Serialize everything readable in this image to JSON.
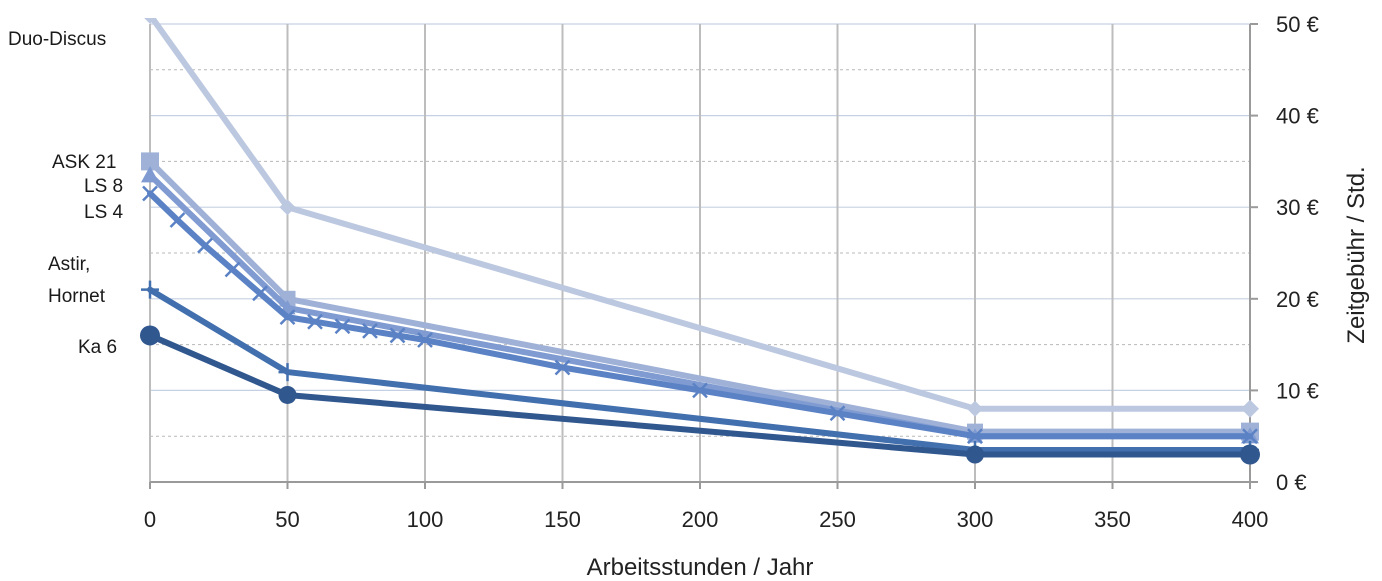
{
  "chart_data": {
    "type": "line",
    "title": "",
    "xlabel": "Arbeitsstunden / Jahr",
    "ylabel": "Zeitgebühr / Std.",
    "x_categories": [
      "0",
      "50",
      "100",
      "150",
      "200",
      "250",
      "300",
      "350",
      "400"
    ],
    "x_tick_values": [
      0,
      50,
      100,
      150,
      200,
      250,
      300,
      350,
      400
    ],
    "y_ticks": [
      "0 €",
      "10 €",
      "20 €",
      "30 €",
      "40 €",
      "50 €"
    ],
    "y_tick_values": [
      0,
      10,
      20,
      30,
      40,
      50
    ],
    "ylim": [
      0,
      50
    ],
    "grid": "vertical major gridlines, horizontal major and dashed minor gridlines",
    "y_axis_position": "right",
    "series": [
      {
        "name": "Duo-Discus",
        "label_lines": [
          "Duo-Discus"
        ],
        "color": "#bcc8e0",
        "marker": "diamond",
        "points": [
          [
            0,
            51
          ],
          [
            50,
            30
          ],
          [
            300,
            8
          ],
          [
            400,
            8
          ]
        ]
      },
      {
        "name": "ASK 21",
        "label_lines": [
          "ASK 21"
        ],
        "color": "#9fb1d6",
        "marker": "square",
        "points": [
          [
            0,
            35
          ],
          [
            50,
            20
          ],
          [
            300,
            5.5
          ],
          [
            400,
            5.5
          ]
        ]
      },
      {
        "name": "LS 8",
        "label_lines": [
          "LS 8"
        ],
        "color": "#7f9bd1",
        "marker": "triangle",
        "points": [
          [
            0,
            33.5
          ],
          [
            50,
            19
          ],
          [
            300,
            5
          ],
          [
            400,
            5
          ]
        ]
      },
      {
        "name": "LS 4",
        "label_lines": [
          "LS 4"
        ],
        "color": "#5b82c5",
        "marker": "x",
        "points": [
          [
            0,
            31.5
          ],
          [
            10,
            28.6
          ],
          [
            20,
            25.8
          ],
          [
            30,
            23.2
          ],
          [
            40,
            20.6
          ],
          [
            50,
            18
          ],
          [
            60,
            17.5
          ],
          [
            70,
            17
          ],
          [
            80,
            16.5
          ],
          [
            90,
            16
          ],
          [
            100,
            15.5
          ],
          [
            150,
            12.5
          ],
          [
            200,
            10
          ],
          [
            250,
            7.5
          ],
          [
            300,
            5
          ],
          [
            400,
            5
          ]
        ]
      },
      {
        "name": "Astir, Hornet",
        "label_lines": [
          "Astir,",
          "Hornet"
        ],
        "color": "#426fad",
        "marker": "plus",
        "points": [
          [
            0,
            21
          ],
          [
            50,
            12
          ],
          [
            300,
            3.5
          ],
          [
            400,
            3.5
          ]
        ]
      },
      {
        "name": "Ka 6",
        "label_lines": [
          "Ka 6"
        ],
        "color": "#31578f",
        "marker": "circle",
        "points": [
          [
            0,
            16
          ],
          [
            50,
            9.5
          ],
          [
            300,
            3
          ],
          [
            400,
            3
          ]
        ]
      }
    ]
  }
}
